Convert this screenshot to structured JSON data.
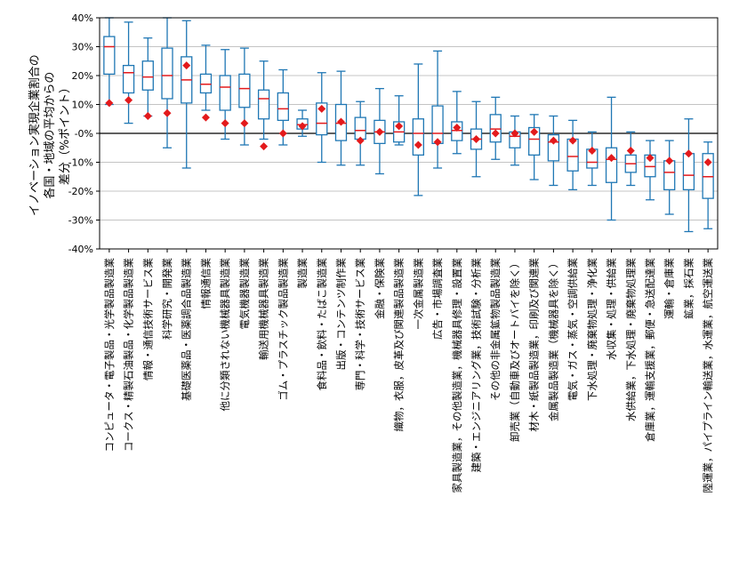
{
  "chart_data": {
    "type": "box",
    "ylabel_lines": [
      "イノベーション実現企業割合の",
      "各国・地域の平均からの",
      "差分（%ポイント）"
    ],
    "ylim": [
      -40,
      40
    ],
    "yticks": [
      -40,
      -30,
      -20,
      -10,
      0,
      10,
      20,
      30,
      40
    ],
    "ytick_labels": [
      "-40%",
      "-30%",
      "-20%",
      "-10%",
      "-0%",
      "10%",
      "20%",
      "30%",
      "40%"
    ],
    "grid": true,
    "zero_line": true,
    "colors": {
      "box": "#1f77b4",
      "median": "#e31a1c",
      "marker": "#e31a1c"
    },
    "categories": [
      "コンピュータ・電子製品・光学製品製造業",
      "コークス・精製石油製品・化学製品製造業",
      "情報・通信技術サービス業",
      "科学研究・開発業",
      "基礎医薬品・医薬調合品製造業",
      "情報通信業",
      "他に分類されない機械器具製造業",
      "電気機器製造業",
      "輸送用機械器具製造業",
      "ゴム・プラスチック製品製造業",
      "製造業",
      "食料品・飲料・たばこ製造業",
      "出版・コンテンツ制作業",
      "専門・科学・技術サービス業",
      "金融・保険業",
      "織物，衣服，皮革及び関連製品製造業",
      "一次金属製造業",
      "広告・市場調査業",
      "家具製造業，その他製造業，機械器具修理・設置業",
      "建築・エンジニアリング業，技術試験・分析業",
      "その他の非金属鉱物製品製造業",
      "卸売業（自動車及びオートバイを除く）",
      "材木・紙製品製造業，印刷及び関連業",
      "金属製品製造業（機械器具を除く）",
      "電気・ガス・蒸気・空調供給業",
      "下水処理・廃棄物処理・浄化業",
      "水収集・処理・供給業",
      "水供給業，下水処理・廃棄物処理業",
      "倉庫業，運輸支援業，郵便・急送配達業",
      "運輸・倉庫業",
      "鉱業，採石業",
      "陸運業，パイプライン輸送業，水運業，航空運送業"
    ],
    "boxes": [
      {
        "wlo": 10,
        "q1": 20.5,
        "med": 30,
        "q3": 33.5,
        "whi": 40,
        "marker": 10.5
      },
      {
        "wlo": 3.5,
        "q1": 14,
        "med": 21,
        "q3": 23.5,
        "whi": 38.5,
        "marker": 11.5
      },
      {
        "wlo": 6,
        "q1": 15,
        "med": 19.5,
        "q3": 25,
        "whi": 33,
        "marker": 6
      },
      {
        "wlo": -5,
        "q1": 12,
        "med": 20,
        "q3": 29.5,
        "whi": 40,
        "marker": 7
      },
      {
        "wlo": -12,
        "q1": 10.5,
        "med": 18.5,
        "q3": 26.5,
        "whi": 39,
        "marker": 23.5
      },
      {
        "wlo": 8,
        "q1": 14,
        "med": 17,
        "q3": 20.5,
        "whi": 30.5,
        "marker": 5.5
      },
      {
        "wlo": -2,
        "q1": 8,
        "med": 16,
        "q3": 20,
        "whi": 29,
        "marker": 3.5
      },
      {
        "wlo": -4,
        "q1": 9,
        "med": 15.5,
        "q3": 20.5,
        "whi": 29.5,
        "marker": 3.5
      },
      {
        "wlo": -2,
        "q1": 5,
        "med": 12,
        "q3": 15,
        "whi": 25,
        "marker": -4.5
      },
      {
        "wlo": -4,
        "q1": 4.5,
        "med": 8.5,
        "q3": 14,
        "whi": 22,
        "marker": 0
      },
      {
        "wlo": -1,
        "q1": 1.5,
        "med": 3,
        "q3": 5,
        "whi": 8,
        "marker": 2.5
      },
      {
        "wlo": -10,
        "q1": -0.5,
        "med": 3.5,
        "q3": 10.5,
        "whi": 21,
        "marker": 8.5
      },
      {
        "wlo": -11,
        "q1": -2.5,
        "med": 3.5,
        "q3": 10,
        "whi": 21.5,
        "marker": 4
      },
      {
        "wlo": -11,
        "q1": -2,
        "med": 1,
        "q3": 5.5,
        "whi": 11,
        "marker": -2.5
      },
      {
        "wlo": -14,
        "q1": -3.5,
        "med": 0.5,
        "q3": 4.5,
        "whi": 15.5,
        "marker": 0.5
      },
      {
        "wlo": -4,
        "q1": -3,
        "med": 0.5,
        "q3": 4,
        "whi": 13,
        "marker": 2.5
      },
      {
        "wlo": -21.5,
        "q1": -7.5,
        "med": 0,
        "q3": 5,
        "whi": 24,
        "marker": -4
      },
      {
        "wlo": -12,
        "q1": -3.5,
        "med": 0,
        "q3": 9.5,
        "whi": 28.5,
        "marker": -3
      },
      {
        "wlo": -7,
        "q1": -2.5,
        "med": 1,
        "q3": 4,
        "whi": 14.5,
        "marker": 2
      },
      {
        "wlo": -15,
        "q1": -5.5,
        "med": -2,
        "q3": 1.5,
        "whi": 11,
        "marker": -2
      },
      {
        "wlo": -9,
        "q1": -3,
        "med": 1.5,
        "q3": 6.5,
        "whi": 12.5,
        "marker": 0
      },
      {
        "wlo": -11,
        "q1": -5,
        "med": -1,
        "q3": 0.5,
        "whi": 6,
        "marker": 0
      },
      {
        "wlo": -16,
        "q1": -7.5,
        "med": -2,
        "q3": 2,
        "whi": 6.5,
        "marker": 0.5
      },
      {
        "wlo": -18,
        "q1": -9.5,
        "med": -3,
        "q3": -0.5,
        "whi": 6,
        "marker": -2.5
      },
      {
        "wlo": -19.5,
        "q1": -13,
        "med": -8,
        "q3": -2,
        "whi": 4.5,
        "marker": -2.5
      },
      {
        "wlo": -18,
        "q1": -12,
        "med": -10,
        "q3": -5.5,
        "whi": 0.5,
        "marker": -6
      },
      {
        "wlo": -30,
        "q1": -17,
        "med": -9,
        "q3": -5,
        "whi": 12.5,
        "marker": -8.5
      },
      {
        "wlo": -18,
        "q1": -13.5,
        "med": -10.5,
        "q3": -7.5,
        "whi": 0.5,
        "marker": -6
      },
      {
        "wlo": -23,
        "q1": -15,
        "med": -11.5,
        "q3": -7.5,
        "whi": -2.5,
        "marker": -8.5
      },
      {
        "wlo": -28,
        "q1": -19.5,
        "med": -13.5,
        "q3": -9.5,
        "whi": -2.5,
        "marker": -9.5
      },
      {
        "wlo": -34,
        "q1": -19.5,
        "med": -14.5,
        "q3": -7,
        "whi": 5,
        "marker": -7
      },
      {
        "wlo": -33,
        "q1": -22.5,
        "med": -15,
        "q3": -7,
        "whi": -3,
        "marker": -10
      }
    ]
  }
}
